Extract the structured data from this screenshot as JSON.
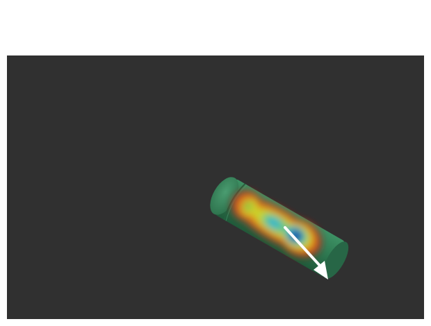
{
  "viewport": {
    "background": "#303030"
  },
  "scene": {
    "object_icon": "cylinder-icon",
    "object_color": "#2f7a52",
    "heatmap_colors": [
      "#c62828",
      "#d4cf2a",
      "#4fc3a1",
      "#1e4fa0"
    ],
    "arrow_icon": "arrow-icon",
    "arrow_color": "#ffffff"
  }
}
